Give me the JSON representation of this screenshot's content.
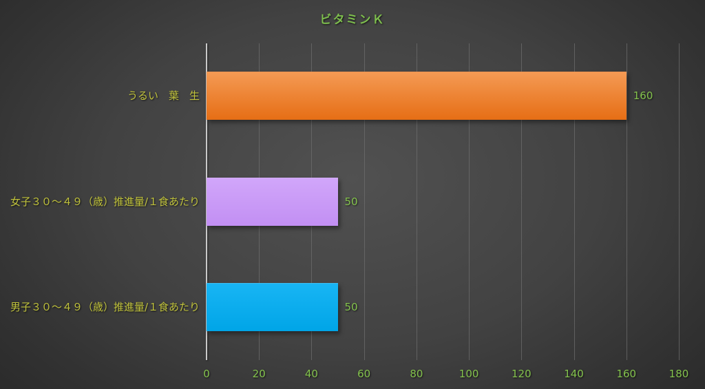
{
  "chart_data": {
    "type": "bar",
    "orientation": "horizontal",
    "title": "ビタミンＫ",
    "xlabel": "",
    "ylabel": "",
    "xlim": [
      0,
      180
    ],
    "x_ticks": [
      "0",
      "20",
      "40",
      "60",
      "80",
      "100",
      "120",
      "140",
      "160",
      "180"
    ],
    "grid": true,
    "legend": false,
    "categories": [
      "うるい　葉　生",
      "女子３０～４９（歳）推進量/１食あたり",
      "男子３０～４９（歳）推進量/１食あたり"
    ],
    "values": [
      160,
      50,
      50
    ],
    "bars": [
      {
        "value_label": "160",
        "color": "#ED7D31",
        "color_top": "#F49A54",
        "color_bottom": "#E66E15"
      },
      {
        "value_label": "50",
        "color": "#CA9CF7",
        "color_top": "#D1A6FA",
        "color_bottom": "#C28FF3"
      },
      {
        "value_label": "50",
        "color": "#00B0F0",
        "color_top": "#18B5F4",
        "color_bottom": "#00A5E7"
      }
    ]
  },
  "colors": {
    "background_center": "#515151",
    "background_edge": "#242424",
    "title_text": "#7EBE4E",
    "category_text": "#C1C33C",
    "value_text": "#84C34D",
    "tick_text": "#84C34D",
    "axis_line": "#C9C9C9",
    "gridline": "#6E6E6E"
  }
}
